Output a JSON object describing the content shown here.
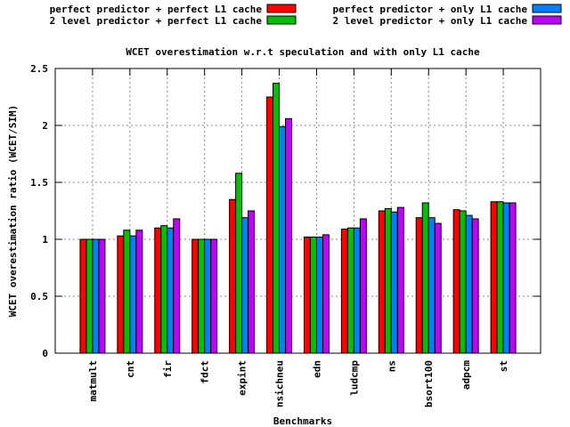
{
  "chart_data": {
    "type": "bar",
    "title": "WCET overestimation w.r.t speculation and with only L1 cache",
    "xlabel": "Benchmarks",
    "ylabel": "WCET overestimation ratio (WCET/SIM)",
    "ylim": [
      0,
      2.5
    ],
    "yticks": [
      "0",
      "0.5",
      "1",
      "1.5",
      "2",
      "2.5"
    ],
    "grid": true,
    "legend_position": "top",
    "categories": [
      "matmult",
      "cnt",
      "fir",
      "fdct",
      "expint",
      "nsichneu",
      "edn",
      "ludcmp",
      "ns",
      "bsort100",
      "adpcm",
      "st"
    ],
    "series": [
      {
        "name": "perfect predictor + perfect L1 cache",
        "color": "#ff0000",
        "values": [
          1.0,
          1.03,
          1.1,
          1.0,
          1.35,
          2.25,
          1.02,
          1.09,
          1.25,
          1.19,
          1.26,
          1.33
        ]
      },
      {
        "name": "2 level predictor + perfect L1 cache",
        "color": "#00c000",
        "values": [
          1.0,
          1.08,
          1.12,
          1.0,
          1.58,
          2.37,
          1.02,
          1.1,
          1.27,
          1.32,
          1.25,
          1.33
        ]
      },
      {
        "name": "perfect predictor + only L1 cache",
        "color": "#0080ff",
        "values": [
          1.0,
          1.03,
          1.1,
          1.0,
          1.19,
          1.99,
          1.02,
          1.1,
          1.24,
          1.19,
          1.21,
          1.32
        ]
      },
      {
        "name": "2 level predictor +  only L1 cache",
        "color": "#c000ff",
        "values": [
          1.0,
          1.08,
          1.18,
          1.0,
          1.25,
          2.06,
          1.04,
          1.18,
          1.28,
          1.14,
          1.18,
          1.32
        ]
      }
    ]
  }
}
